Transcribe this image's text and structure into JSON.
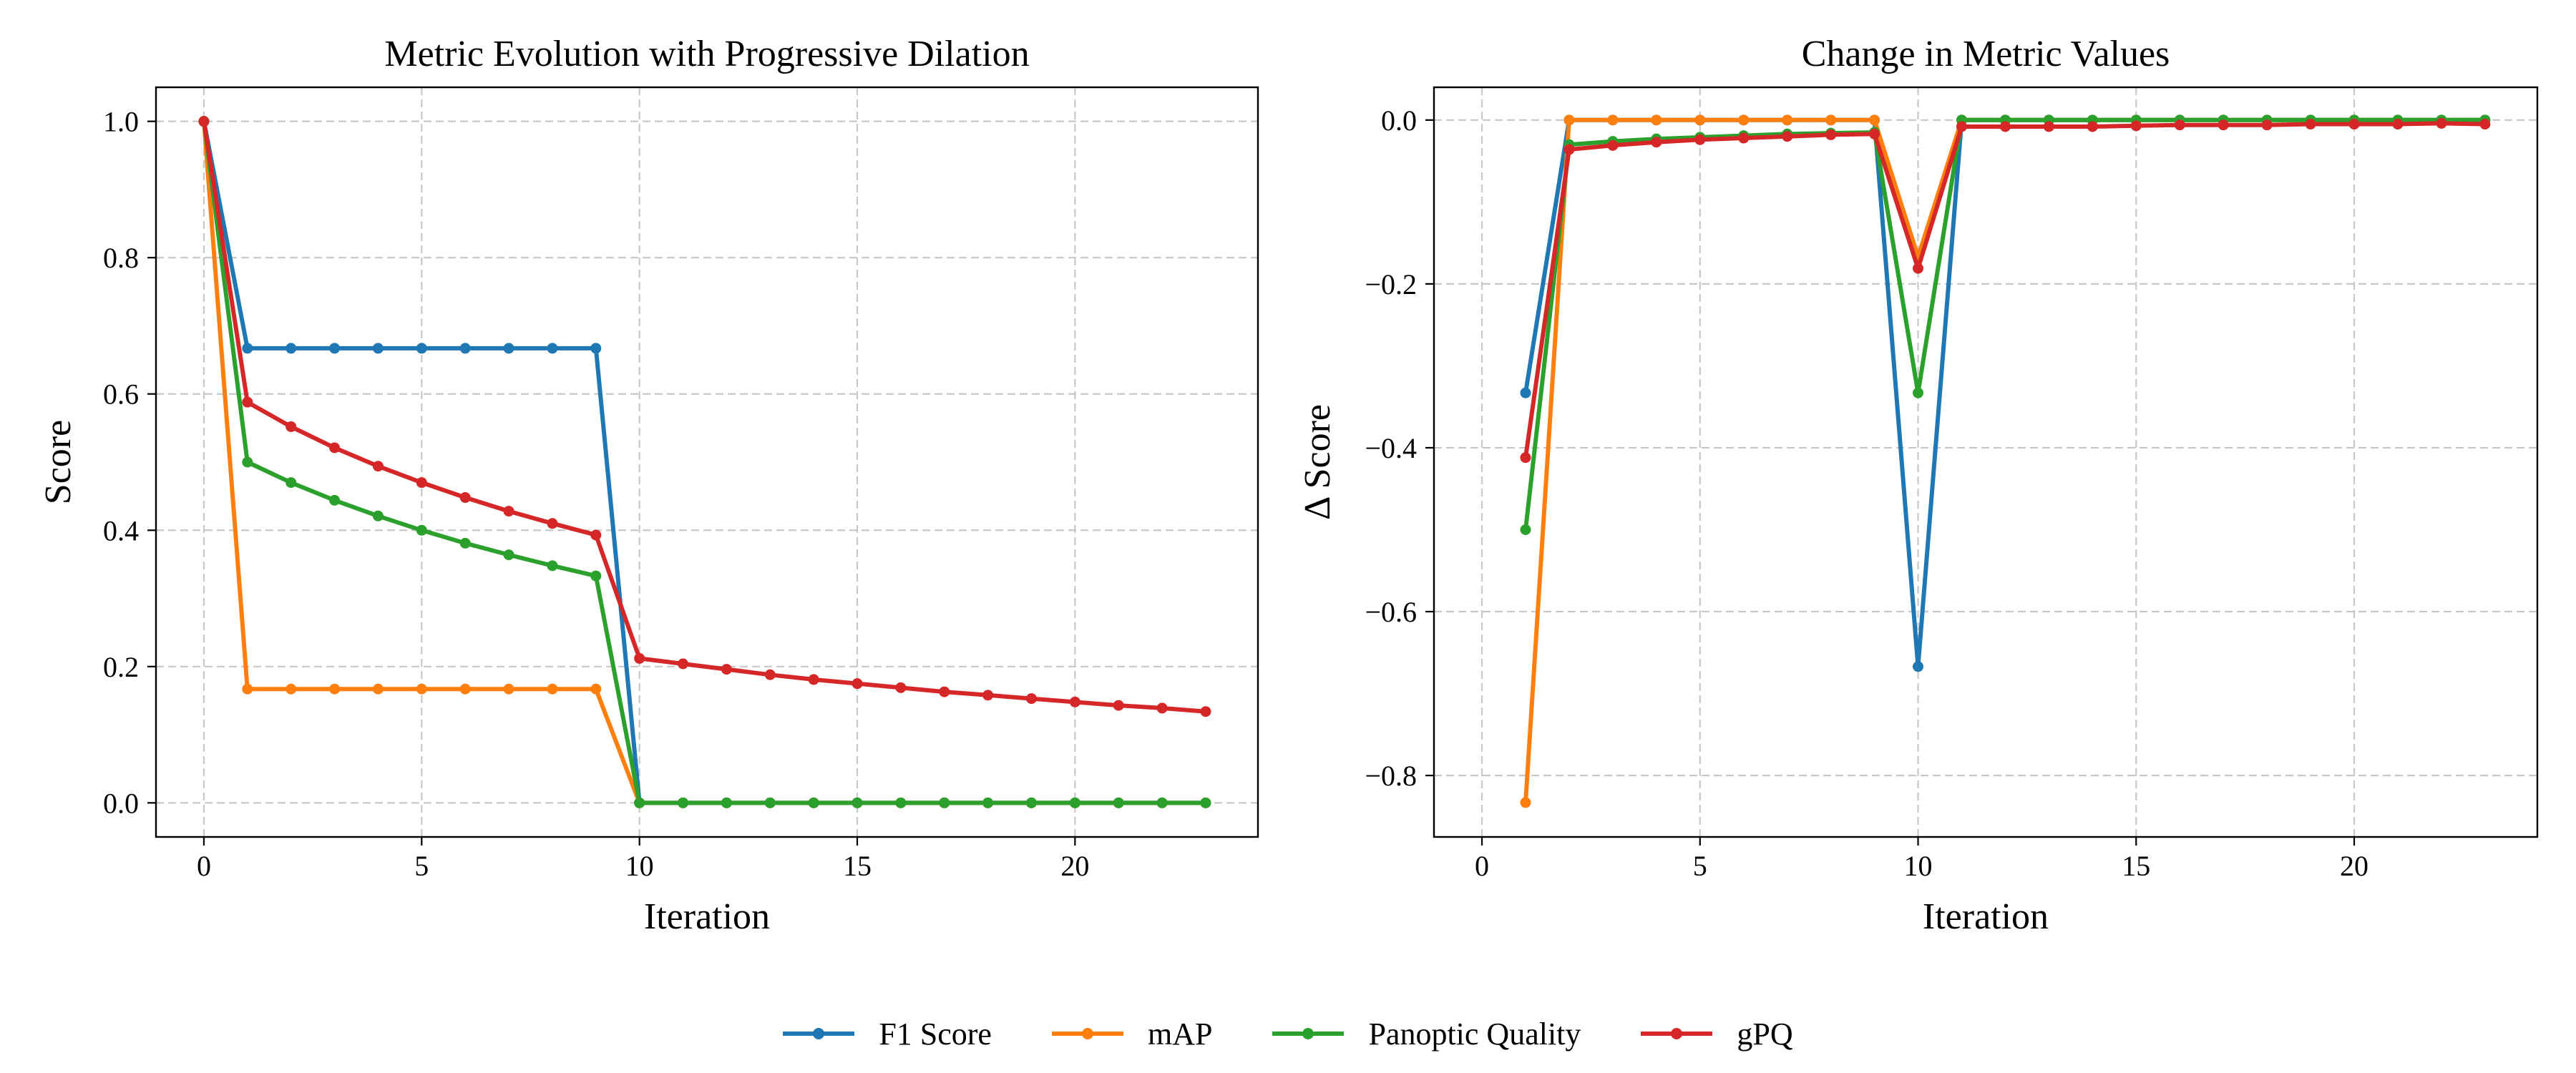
{
  "chart_data": [
    {
      "type": "line",
      "title": "Metric Evolution with Progressive Dilation",
      "xlabel": "Iteration",
      "ylabel": "Score",
      "xlim": [
        -1.1,
        24.2
      ],
      "ylim": [
        -0.05,
        1.05
      ],
      "xticks": [
        0,
        5,
        10,
        15,
        20
      ],
      "yticks": [
        0.0,
        0.2,
        0.4,
        0.6,
        0.8,
        1.0
      ],
      "ytick_labels": [
        "0.0",
        "0.2",
        "0.4",
        "0.6",
        "0.8",
        "1.0"
      ],
      "grid": true,
      "x": [
        0,
        1,
        2,
        3,
        4,
        5,
        6,
        7,
        8,
        9,
        10,
        11,
        12,
        13,
        14,
        15,
        16,
        17,
        18,
        19,
        20,
        21,
        22,
        23
      ],
      "series": [
        {
          "name": "F1 Score",
          "color": "#1f77b4",
          "values": [
            1.0,
            0.667,
            0.667,
            0.667,
            0.667,
            0.667,
            0.667,
            0.667,
            0.667,
            0.667,
            0,
            0,
            0,
            0,
            0,
            0,
            0,
            0,
            0,
            0,
            0,
            0,
            0,
            0
          ]
        },
        {
          "name": "mAP",
          "color": "#ff7f0e",
          "values": [
            1.0,
            0.167,
            0.167,
            0.167,
            0.167,
            0.167,
            0.167,
            0.167,
            0.167,
            0.167,
            0,
            0,
            0,
            0,
            0,
            0,
            0,
            0,
            0,
            0,
            0,
            0,
            0,
            0
          ]
        },
        {
          "name": "Panoptic Quality",
          "color": "#2ca02c",
          "values": [
            1.0,
            0.5,
            0.47,
            0.444,
            0.421,
            0.4,
            0.381,
            0.364,
            0.348,
            0.333,
            0,
            0,
            0,
            0,
            0,
            0,
            0,
            0,
            0,
            0,
            0,
            0,
            0,
            0
          ]
        },
        {
          "name": "gPQ",
          "color": "#d62728",
          "values": [
            1.0,
            0.588,
            0.552,
            0.521,
            0.494,
            0.47,
            0.448,
            0.428,
            0.41,
            0.393,
            0.212,
            0.204,
            0.196,
            0.188,
            0.181,
            0.175,
            0.169,
            0.163,
            0.158,
            0.153,
            0.148,
            0.143,
            0.139,
            0.134
          ]
        }
      ]
    },
    {
      "type": "line",
      "title": "Change in Metric Values",
      "xlabel": "Iteration",
      "ylabel": "Δ Score",
      "xlim": [
        -1.1,
        24.2
      ],
      "ylim": [
        -0.875,
        0.04
      ],
      "xticks": [
        0,
        5,
        10,
        15,
        20
      ],
      "yticks": [
        0.0,
        -0.2,
        -0.4,
        -0.6,
        -0.8
      ],
      "ytick_labels": [
        "0.0",
        "−0.2",
        "−0.4",
        "−0.6",
        "−0.8"
      ],
      "grid": true,
      "x": [
        1,
        2,
        3,
        4,
        5,
        6,
        7,
        8,
        9,
        10,
        11,
        12,
        13,
        14,
        15,
        16,
        17,
        18,
        19,
        20,
        21,
        22,
        23
      ],
      "series": [
        {
          "name": "F1 Score",
          "color": "#1f77b4",
          "values": [
            -0.333,
            0,
            0,
            0,
            0,
            0,
            0,
            0,
            0,
            -0.667,
            0,
            0,
            0,
            0,
            0,
            0,
            0,
            0,
            0,
            0,
            0,
            0,
            0
          ]
        },
        {
          "name": "mAP",
          "color": "#ff7f0e",
          "values": [
            -0.833,
            0,
            0,
            0,
            0,
            0,
            0,
            0,
            0,
            -0.167,
            0,
            0,
            0,
            0,
            0,
            0,
            0,
            0,
            0,
            0,
            0,
            0,
            0
          ]
        },
        {
          "name": "Panoptic Quality",
          "color": "#2ca02c",
          "values": [
            -0.5,
            -0.03,
            -0.026,
            -0.023,
            -0.021,
            -0.019,
            -0.017,
            -0.016,
            -0.015,
            -0.333,
            0,
            0,
            0,
            0,
            0,
            0,
            0,
            0,
            0,
            0,
            0,
            0,
            0
          ]
        },
        {
          "name": "gPQ",
          "color": "#d62728",
          "values": [
            -0.412,
            -0.036,
            -0.031,
            -0.027,
            -0.024,
            -0.022,
            -0.02,
            -0.018,
            -0.017,
            -0.181,
            -0.008,
            -0.008,
            -0.008,
            -0.008,
            -0.007,
            -0.006,
            -0.006,
            -0.006,
            -0.005,
            -0.005,
            -0.005,
            -0.004,
            -0.005
          ]
        }
      ]
    }
  ],
  "legend": {
    "placement": "bottom-center",
    "items": [
      {
        "label": "F1 Score",
        "color": "#1f77b4"
      },
      {
        "label": "mAP",
        "color": "#ff7f0e"
      },
      {
        "label": "Panoptic Quality",
        "color": "#2ca02c"
      },
      {
        "label": "gPQ",
        "color": "#d62728"
      }
    ]
  }
}
